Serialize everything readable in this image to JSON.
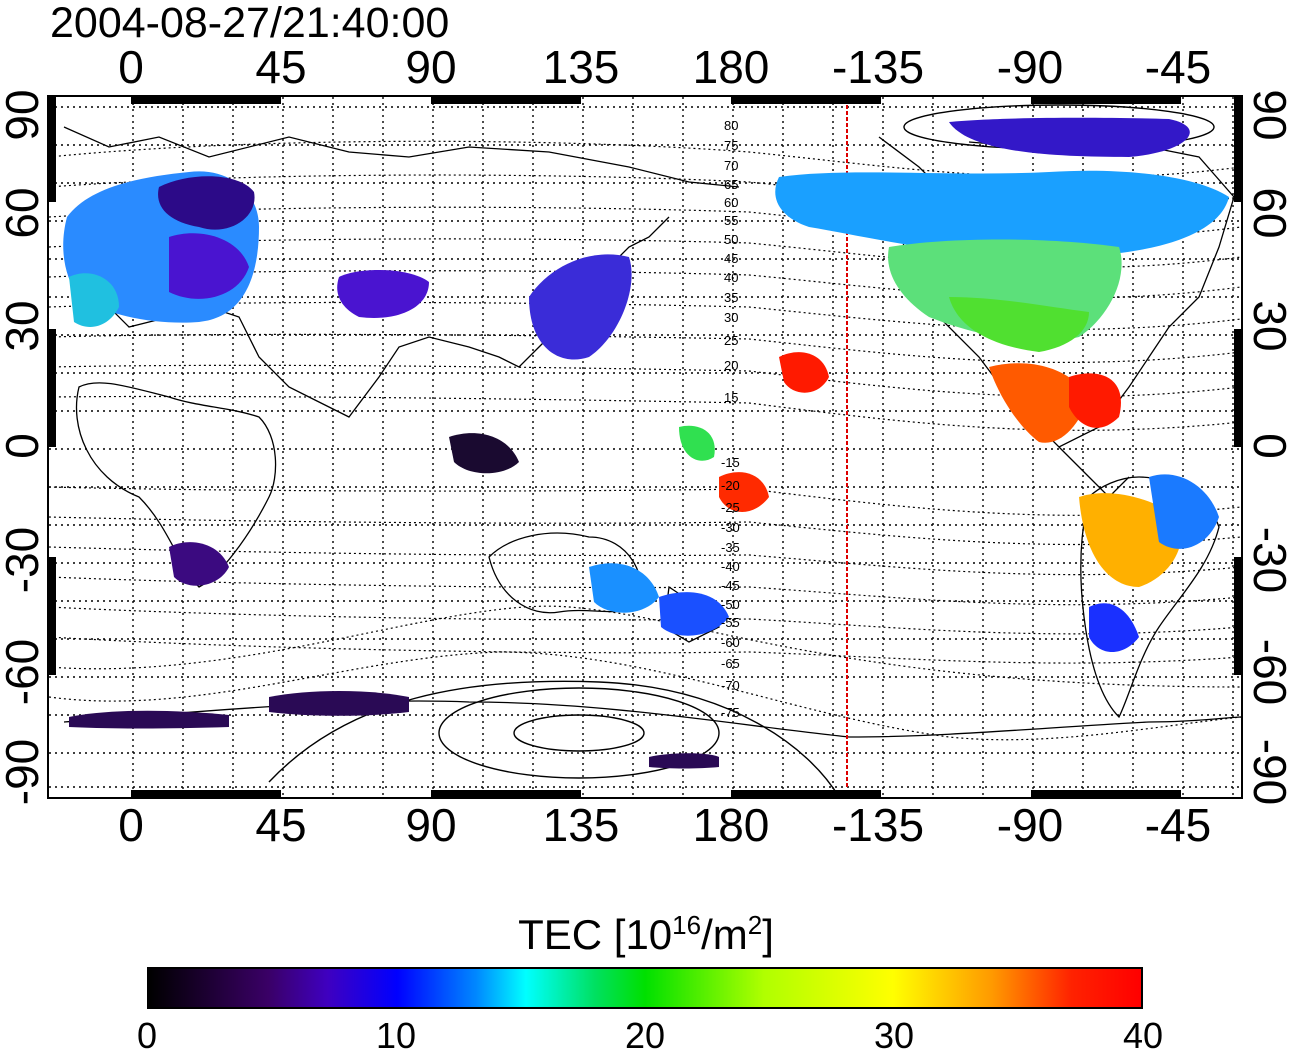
{
  "title": "2004-08-27/21:40:00",
  "longitude_ticks": [
    "0",
    "45",
    "90",
    "135",
    "180",
    "-135",
    "-90",
    "-45"
  ],
  "latitude_ticks": [
    "90",
    "60",
    "30",
    "0",
    "-30",
    "-60",
    "-90"
  ],
  "contour_labels": [
    "80",
    "75",
    "70",
    "65",
    "60",
    "55",
    "50",
    "45",
    "40",
    "35",
    "30",
    "25",
    "20",
    "15",
    "-15",
    "-20",
    "-25",
    "-30",
    "-35",
    "-40",
    "-45",
    "-50",
    "-55",
    "-60",
    "-65",
    "-70",
    "-75"
  ],
  "colorbar": {
    "title_main": "TEC  [10",
    "title_sup1": "16",
    "title_mid": "/m",
    "title_sup2": "2",
    "title_end": "]",
    "ticks": [
      "0",
      "10",
      "20",
      "30",
      "40"
    ],
    "min": 0,
    "max": 40,
    "colors": [
      "#000000",
      "#3a0066",
      "#0000ff",
      "#00ffff",
      "#00e000",
      "#ffff00",
      "#ff0000"
    ]
  },
  "map": {
    "terminator_color": "#dd0000",
    "grid_style": "dotted",
    "lon_range": [
      -25,
      330
    ],
    "lat_range": [
      -95,
      95
    ]
  }
}
